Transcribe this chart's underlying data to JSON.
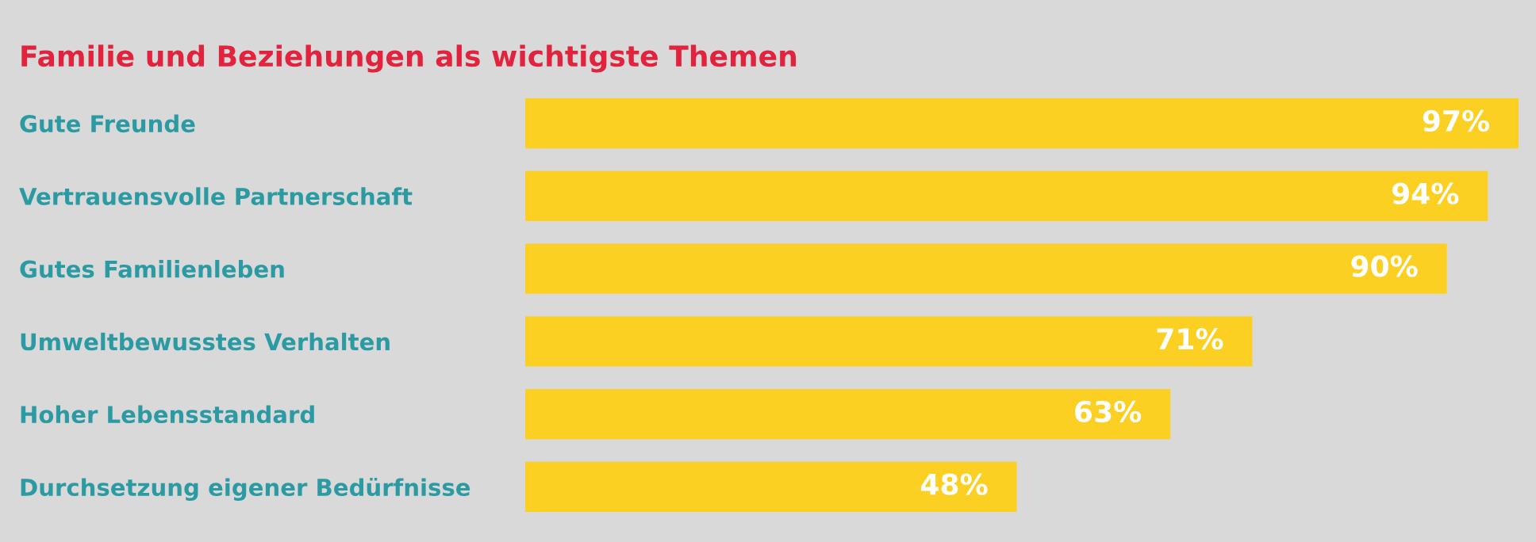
{
  "chart_data": {
    "type": "bar",
    "orientation": "horizontal",
    "title": "Familie und Beziehungen als wichtigste Themen",
    "categories": [
      "Gute Freunde",
      "Vertrauensvolle Partnerschaft",
      "Gutes Familienleben",
      "Umweltbewusstes Verhalten",
      "Hoher Lebensstandard",
      "Durchsetzung eigener Bedürfnisse"
    ],
    "values": [
      97,
      94,
      90,
      71,
      63,
      48
    ],
    "color": "#fcd022",
    "value_labels": [
      "97%",
      "94%",
      "90%",
      "71%",
      "63%",
      "48%"
    ],
    "grid": false,
    "legend": false
  }
}
